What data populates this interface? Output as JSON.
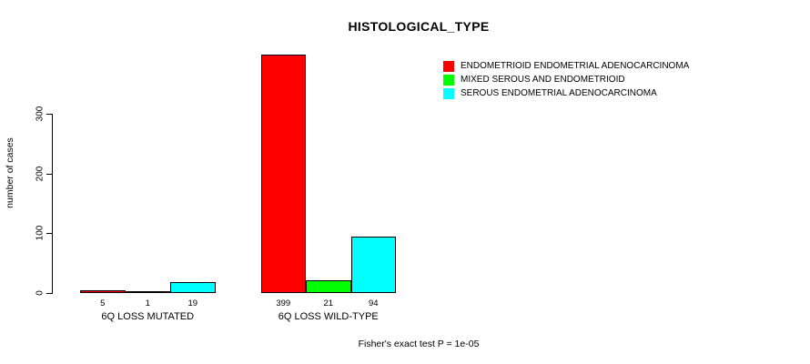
{
  "chart_data": {
    "type": "bar",
    "title": "HISTOLOGICAL_TYPE",
    "xlabel": "",
    "ylabel": "number of cases",
    "categories": [
      "6Q LOSS MUTATED",
      "6Q LOSS WILD-TYPE"
    ],
    "series": [
      {
        "name": "ENDOMETRIOID ENDOMETRIAL ADENOCARCINOMA",
        "color": "#ff0000",
        "values": [
          5,
          399
        ]
      },
      {
        "name": "MIXED SEROUS AND ENDOMETRIOID",
        "color": "#00ff00",
        "values": [
          1,
          21
        ]
      },
      {
        "name": "SEROUS ENDOMETRIAL ADENOCARCINOMA",
        "color": "#00ffff",
        "values": [
          19,
          94
        ]
      }
    ],
    "yticks": [
      0,
      100,
      200,
      300
    ],
    "ylim": [
      0,
      400
    ],
    "grid": false,
    "legend_position": "top-right",
    "bar_border_color": "#000000",
    "background_color": "#ffffff",
    "annotation": "Fisher's exact test P = 1e-05"
  }
}
